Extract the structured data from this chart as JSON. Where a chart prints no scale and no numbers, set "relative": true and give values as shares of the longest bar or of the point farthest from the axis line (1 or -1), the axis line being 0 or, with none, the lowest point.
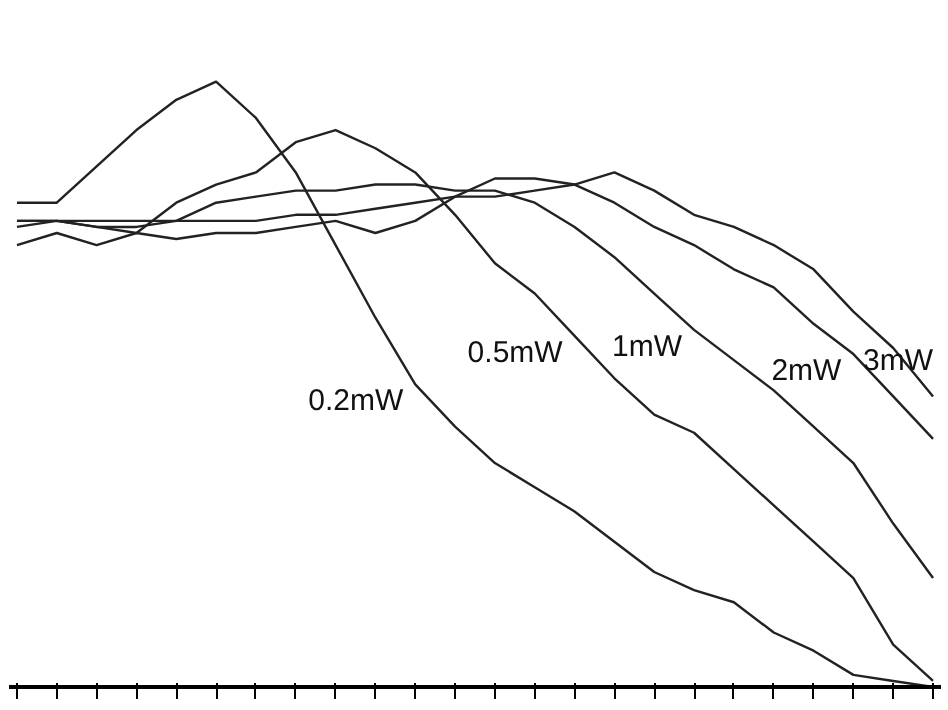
{
  "chart_data": {
    "type": "line",
    "relative": true,
    "categories": [
      null,
      null,
      null,
      null,
      null,
      null,
      null,
      null,
      null,
      null,
      null,
      null,
      null,
      null,
      null,
      null,
      null,
      null,
      null,
      null,
      null,
      null,
      null,
      null
    ],
    "series": [
      {
        "name": "0.2mW",
        "color": "#222222",
        "values": [
          0.8,
          0.8,
          0.86,
          0.92,
          0.97,
          1.0,
          0.94,
          0.85,
          0.73,
          0.61,
          0.5,
          0.43,
          0.37,
          0.33,
          0.29,
          0.24,
          0.19,
          0.16,
          0.14,
          0.09,
          0.06,
          0.02,
          0.01,
          0
        ]
      },
      {
        "name": "0.5mW",
        "color": "#222222",
        "values": [
          0.77,
          0.77,
          0.76,
          0.75,
          0.8,
          0.83,
          0.85,
          0.9,
          0.92,
          0.89,
          0.85,
          0.78,
          0.7,
          0.65,
          0.58,
          0.51,
          0.45,
          0.42,
          0.36,
          0.3,
          0.24,
          0.18,
          0.07,
          0.01
        ]
      },
      {
        "name": "1mW",
        "color": "#222222",
        "values": [
          0.77,
          0.77,
          0.77,
          0.77,
          0.77,
          0.8,
          0.81,
          0.82,
          0.82,
          0.83,
          0.83,
          0.82,
          0.82,
          0.8,
          0.76,
          0.71,
          0.65,
          0.59,
          0.54,
          0.49,
          0.43,
          0.37,
          0.27,
          0.18
        ]
      },
      {
        "name": "2mW",
        "color": "#222222",
        "values": [
          0.76,
          0.77,
          0.76,
          0.76,
          0.77,
          0.77,
          0.77,
          0.78,
          0.78,
          0.79,
          0.8,
          0.81,
          0.81,
          0.82,
          0.83,
          0.8,
          0.76,
          0.73,
          0.69,
          0.66,
          0.6,
          0.55,
          0.48,
          0.41
        ]
      },
      {
        "name": "3mW",
        "color": "#222222",
        "values": [
          0.73,
          0.75,
          0.73,
          0.75,
          0.74,
          0.75,
          0.75,
          0.76,
          0.77,
          0.75,
          0.77,
          0.81,
          0.84,
          0.84,
          0.83,
          0.85,
          0.82,
          0.78,
          0.76,
          0.73,
          0.69,
          0.62,
          0.56,
          0.48
        ]
      }
    ],
    "marker": "none",
    "line_style": "solid",
    "grid": false
  }
}
